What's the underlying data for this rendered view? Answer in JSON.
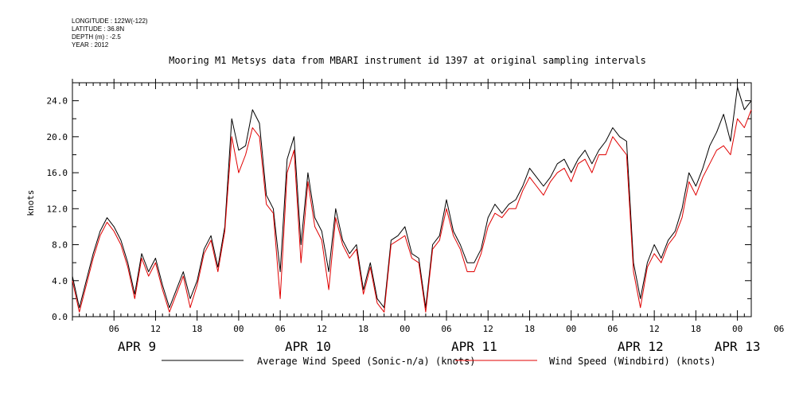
{
  "header": {
    "longitude": "LONGITUDE : 122W(-122)",
    "latitude": "LATITUDE : 36.8N",
    "depth": "DEPTH (m) : -2.5",
    "year": "YEAR : 2012"
  },
  "chart_data": {
    "type": "line",
    "title": "Mooring M1 Metsys data from MBARI instrument id 1397 at original sampling intervals",
    "xlabel": "",
    "ylabel": "knots",
    "xlim_hours": [
      0,
      98
    ],
    "ylim": [
      0,
      26
    ],
    "y_ticks": [
      "0.0",
      "4.0",
      "8.0",
      "12.0",
      "16.0",
      "20.0",
      "24.0"
    ],
    "x_hour_ticks": [
      "06",
      "12",
      "18",
      "00",
      "06",
      "12",
      "18",
      "00",
      "06",
      "12",
      "18",
      "00",
      "06",
      "12",
      "18",
      "00",
      "06"
    ],
    "x_day_labels": [
      "APR  9",
      "APR 10",
      "APR 11",
      "APR 12",
      "APR 13"
    ],
    "series": [
      {
        "name": "Average Wind Speed (Sonic-n/a) (knots)",
        "color": "#000000",
        "x_hours": [
          0,
          1,
          2,
          3,
          4,
          5,
          6,
          7,
          8,
          9,
          10,
          11,
          12,
          13,
          14,
          15,
          16,
          17,
          18,
          19,
          20,
          21,
          22,
          23,
          24,
          25,
          26,
          27,
          28,
          29,
          30,
          31,
          32,
          33,
          34,
          35,
          36,
          37,
          38,
          39,
          40,
          41,
          42,
          43,
          44,
          45,
          46,
          47,
          48,
          49,
          50,
          51,
          52,
          53,
          54,
          55,
          56,
          57,
          58,
          59,
          60,
          61,
          62,
          63,
          64,
          65,
          66,
          67,
          68,
          69,
          70,
          71,
          72,
          73,
          74,
          75,
          76,
          77,
          78,
          79,
          80,
          81,
          82,
          83,
          84,
          85,
          86,
          87,
          88,
          89,
          90,
          91,
          92,
          93,
          94,
          95,
          96,
          97,
          98
        ],
        "values": [
          4.5,
          1.0,
          4.0,
          7.0,
          9.5,
          11.0,
          10.0,
          8.5,
          6.0,
          2.5,
          7.0,
          5.0,
          6.5,
          3.5,
          1.0,
          3.0,
          5.0,
          2.0,
          4.0,
          7.5,
          9.0,
          5.5,
          10.0,
          22.0,
          18.5,
          19.0,
          23.0,
          21.5,
          13.5,
          12.0,
          5.0,
          17.5,
          20.0,
          8.0,
          16.0,
          11.0,
          9.5,
          5.0,
          12.0,
          8.5,
          7.0,
          8.0,
          3.0,
          6.0,
          2.0,
          1.0,
          8.5,
          9.0,
          10.0,
          7.0,
          6.5,
          1.0,
          8.0,
          9.0,
          13.0,
          9.5,
          8.0,
          6.0,
          6.0,
          7.5,
          11.0,
          12.5,
          11.5,
          12.5,
          13.0,
          14.5,
          16.5,
          15.5,
          14.5,
          15.5,
          17.0,
          17.5,
          16.0,
          17.5,
          18.5,
          17.0,
          18.5,
          19.5,
          21.0,
          20.0,
          19.5,
          6.0,
          2.0,
          6.0,
          8.0,
          6.5,
          8.5,
          9.5,
          12.0,
          16.0,
          14.5,
          16.5,
          19.0,
          20.5,
          22.5,
          19.5,
          25.5,
          23.0,
          24.0
        ]
      },
      {
        "name": "Wind Speed (Windbird) (knots)",
        "color": "#e00000",
        "x_hours": [
          0,
          1,
          2,
          3,
          4,
          5,
          6,
          7,
          8,
          9,
          10,
          11,
          12,
          13,
          14,
          15,
          16,
          17,
          18,
          19,
          20,
          21,
          22,
          23,
          24,
          25,
          26,
          27,
          28,
          29,
          30,
          31,
          32,
          33,
          34,
          35,
          36,
          37,
          38,
          39,
          40,
          41,
          42,
          43,
          44,
          45,
          46,
          47,
          48,
          49,
          50,
          51,
          52,
          53,
          54,
          55,
          56,
          57,
          58,
          59,
          60,
          61,
          62,
          63,
          64,
          65,
          66,
          67,
          68,
          69,
          70,
          71,
          72,
          73,
          74,
          75,
          76,
          77,
          78,
          79,
          80,
          81,
          82,
          83,
          84,
          85,
          86,
          87,
          88,
          89,
          90,
          91,
          92,
          93,
          94,
          95,
          96,
          97,
          98
        ],
        "values": [
          4.0,
          0.5,
          3.5,
          6.5,
          9.0,
          10.5,
          9.5,
          8.0,
          5.5,
          2.0,
          6.5,
          4.5,
          6.0,
          3.0,
          0.5,
          2.5,
          4.5,
          1.0,
          3.5,
          7.0,
          8.5,
          5.0,
          9.5,
          20.0,
          16.0,
          18.0,
          21.0,
          20.0,
          12.5,
          11.5,
          2.0,
          16.0,
          18.5,
          6.0,
          15.0,
          10.0,
          8.5,
          3.0,
          11.0,
          8.0,
          6.5,
          7.5,
          2.5,
          5.5,
          1.5,
          0.5,
          8.0,
          8.5,
          9.0,
          6.5,
          6.0,
          0.5,
          7.5,
          8.5,
          12.0,
          9.0,
          7.5,
          5.0,
          5.0,
          7.0,
          10.0,
          11.5,
          11.0,
          12.0,
          12.0,
          14.0,
          15.5,
          14.5,
          13.5,
          15.0,
          16.0,
          16.5,
          15.0,
          17.0,
          17.5,
          16.0,
          18.0,
          18.0,
          20.0,
          19.0,
          18.0,
          5.0,
          1.0,
          5.5,
          7.0,
          6.0,
          8.0,
          9.0,
          11.0,
          15.0,
          13.5,
          15.5,
          17.0,
          18.5,
          19.0,
          18.0,
          22.0,
          21.0,
          23.0
        ]
      }
    ],
    "legend": "bottom",
    "grid": false
  }
}
